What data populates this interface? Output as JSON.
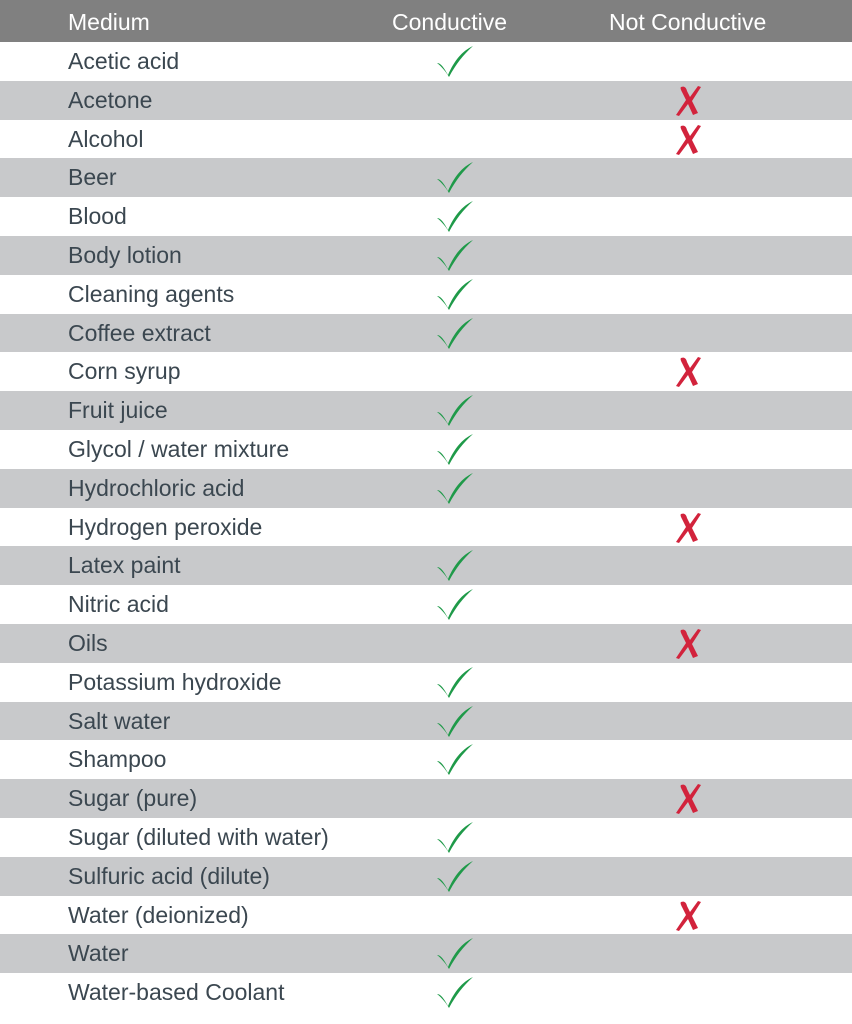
{
  "header": {
    "medium": "Medium",
    "conductive": "Conductive",
    "not_conductive": "Not Conductive"
  },
  "icons": {
    "check": "check-icon",
    "cross": "cross-icon"
  },
  "colors": {
    "header_bg": "#808080",
    "alt_row_bg": "#c8c9cb",
    "check": "#1f9a49",
    "cross": "#d2233c"
  },
  "rows": [
    {
      "medium": "Acetic acid",
      "conductive": true
    },
    {
      "medium": "Acetone",
      "conductive": false
    },
    {
      "medium": "Alcohol",
      "conductive": false
    },
    {
      "medium": "Beer",
      "conductive": true
    },
    {
      "medium": "Blood",
      "conductive": true
    },
    {
      "medium": "Body lotion",
      "conductive": true
    },
    {
      "medium": "Cleaning agents",
      "conductive": true
    },
    {
      "medium": "Coffee extract",
      "conductive": true
    },
    {
      "medium": "Corn syrup",
      "conductive": false
    },
    {
      "medium": "Fruit juice",
      "conductive": true
    },
    {
      "medium": "Glycol / water mixture",
      "conductive": true
    },
    {
      "medium": "Hydrochloric acid",
      "conductive": true
    },
    {
      "medium": "Hydrogen peroxide",
      "conductive": false
    },
    {
      "medium": "Latex paint",
      "conductive": true
    },
    {
      "medium": "Nitric acid",
      "conductive": true
    },
    {
      "medium": "Oils",
      "conductive": false
    },
    {
      "medium": "Potassium hydroxide",
      "conductive": true
    },
    {
      "medium": "Salt water",
      "conductive": true
    },
    {
      "medium": "Shampoo",
      "conductive": true
    },
    {
      "medium": "Sugar (pure)",
      "conductive": false
    },
    {
      "medium": "Sugar (diluted with water)",
      "conductive": true
    },
    {
      "medium": "Sulfuric acid (dilute)",
      "conductive": true
    },
    {
      "medium": "Water (deionized)",
      "conductive": false
    },
    {
      "medium": "Water",
      "conductive": true
    },
    {
      "medium": "Water-based Coolant",
      "conductive": true
    }
  ]
}
